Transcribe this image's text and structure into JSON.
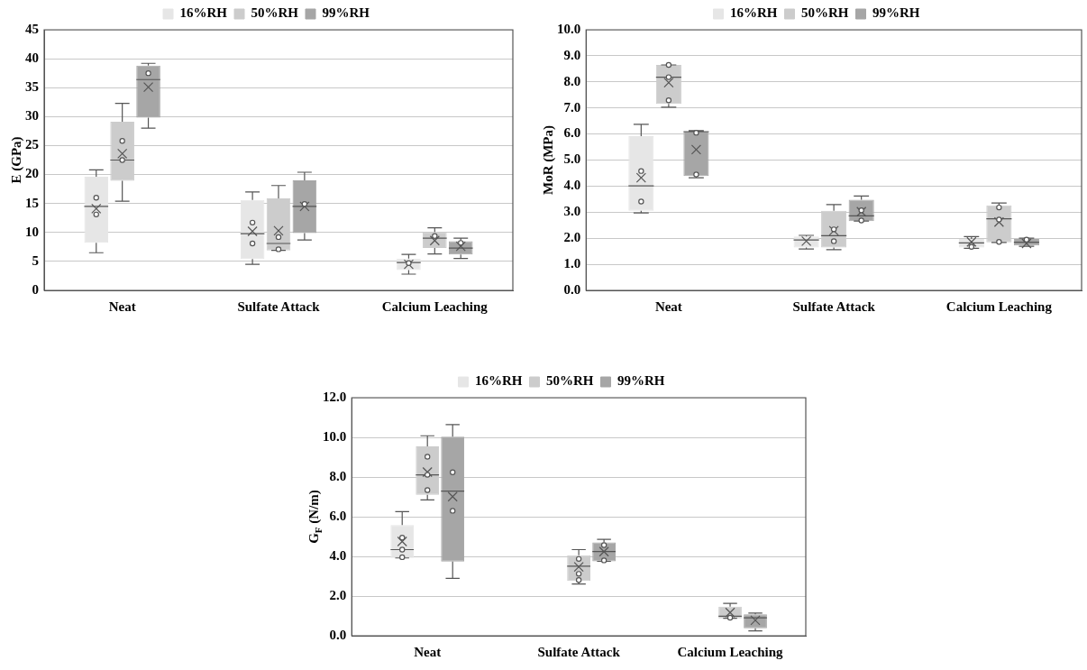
{
  "chart_data": [
    {
      "type": "box",
      "ylabel": "E (GPa)",
      "categories": [
        "Neat",
        "Sulfate Attack",
        "Calcium Leaching"
      ],
      "ylim": [
        0,
        45
      ],
      "yticks": [
        0,
        5,
        10,
        15,
        20,
        25,
        30,
        35,
        40,
        45
      ],
      "grid": "y",
      "legend": "top",
      "series": [
        {
          "name": "16%RH",
          "color": "#e6e6e6",
          "boxes": [
            {
              "low": 6.5,
              "q1": 8.2,
              "median": 14.5,
              "q3": 19.6,
              "high": 20.8,
              "mean": 14.1,
              "outliers": [
                16.0,
                13.1
              ]
            },
            {
              "low": 4.5,
              "q1": 5.4,
              "median": 9.8,
              "q3": 15.6,
              "high": 17.0,
              "mean": 10.2,
              "outliers": [
                11.7,
                8.1
              ]
            },
            {
              "low": 2.8,
              "q1": 3.5,
              "median": 4.8,
              "q3": 5.5,
              "high": 6.2,
              "mean": 4.5,
              "outliers": [
                4.7
              ]
            }
          ]
        },
        {
          "name": "50%RH",
          "color": "#cccccc",
          "boxes": [
            {
              "low": 15.4,
              "q1": 18.9,
              "median": 22.5,
              "q3": 29.1,
              "high": 32.3,
              "mean": 23.6,
              "outliers": [
                25.8,
                22.5
              ]
            },
            {
              "low": 6.9,
              "q1": 6.9,
              "median": 8.1,
              "q3": 15.9,
              "high": 18.1,
              "mean": 10.3,
              "outliers": [
                9.2,
                7.1
              ]
            },
            {
              "low": 6.3,
              "q1": 7.3,
              "median": 9.0,
              "q3": 10.1,
              "high": 10.8,
              "mean": 8.6,
              "outliers": [
                9.4
              ]
            }
          ]
        },
        {
          "name": "99%RH",
          "color": "#a6a6a6",
          "boxes": [
            {
              "low": 28.0,
              "q1": 29.8,
              "median": 36.4,
              "q3": 38.8,
              "high": 39.2,
              "mean": 35.1,
              "outliers": [
                37.5
              ]
            },
            {
              "low": 8.7,
              "q1": 9.9,
              "median": 14.5,
              "q3": 19.0,
              "high": 20.4,
              "mean": 14.5,
              "outliers": [
                14.9
              ]
            },
            {
              "low": 5.5,
              "q1": 6.2,
              "median": 7.3,
              "q3": 8.5,
              "high": 9.0,
              "mean": 7.6,
              "outliers": [
                8.2
              ]
            }
          ]
        }
      ]
    },
    {
      "type": "box",
      "ylabel": "MoR (MPa)",
      "categories": [
        "Neat",
        "Sulfate Attack",
        "Calcium Leaching"
      ],
      "ylim": [
        0,
        10
      ],
      "yticks": [
        {
          "value": 0,
          "label": "0.0"
        },
        {
          "value": 1,
          "label": "1.0"
        },
        {
          "value": 2,
          "label": "2.0"
        },
        {
          "value": 3,
          "label": "3.0"
        },
        {
          "value": 4,
          "label": "4.0"
        },
        {
          "value": 5,
          "label": "5.0"
        },
        {
          "value": 6,
          "label": "6.0"
        },
        {
          "value": 7,
          "label": "7.0"
        },
        {
          "value": 8,
          "label": "8.0"
        },
        {
          "value": 9,
          "label": "9.0"
        },
        {
          "value": 10,
          "label": "10.0"
        }
      ],
      "grid": "y",
      "legend": "top",
      "series": [
        {
          "name": "16%RH",
          "color": "#e6e6e6",
          "boxes": [
            {
              "low": 2.97,
              "q1": 3.05,
              "median": 4.01,
              "q3": 5.92,
              "high": 6.37,
              "mean": 4.32,
              "outliers": [
                4.58,
                3.41
              ]
            },
            {
              "low": 1.59,
              "q1": 1.64,
              "median": 1.93,
              "q3": 2.07,
              "high": 2.11,
              "mean": 1.89
            },
            {
              "low": 1.61,
              "q1": 1.64,
              "median": 1.82,
              "q3": 1.97,
              "high": 2.06,
              "mean": 1.86,
              "outliers": [
                1.67
              ]
            }
          ]
        },
        {
          "name": "50%RH",
          "color": "#cccccc",
          "boxes": [
            {
              "low": 7.03,
              "q1": 7.15,
              "median": 8.18,
              "q3": 8.65,
              "high": 8.65,
              "mean": 7.97,
              "outliers": [
                8.65,
                8.18,
                7.29
              ]
            },
            {
              "low": 1.56,
              "q1": 1.64,
              "median": 2.1,
              "q3": 3.05,
              "high": 3.29,
              "mean": 2.29,
              "outliers": [
                2.34,
                1.89
              ]
            },
            {
              "low": 1.84,
              "q1": 1.84,
              "median": 2.75,
              "q3": 3.26,
              "high": 3.35,
              "mean": 2.62,
              "outliers": [
                3.18,
                2.72,
                1.86
              ]
            }
          ]
        },
        {
          "name": "99%RH",
          "color": "#a6a6a6",
          "boxes": [
            {
              "low": 4.32,
              "q1": 4.39,
              "median": 6.09,
              "q3": 6.09,
              "high": 6.13,
              "mean": 5.4,
              "outliers": [
                6.05,
                4.45
              ]
            },
            {
              "low": 2.66,
              "q1": 2.66,
              "median": 2.86,
              "q3": 3.48,
              "high": 3.62,
              "mean": 3.02,
              "outliers": [
                3.07,
                2.68
              ]
            },
            {
              "low": 1.69,
              "q1": 1.72,
              "median": 1.85,
              "q3": 1.97,
              "high": 2.0,
              "mean": 1.8,
              "outliers": [
                1.95
              ]
            }
          ]
        }
      ]
    },
    {
      "type": "box",
      "ylabel": "G$_{F}$ (N/m)",
      "categories": [
        "Neat",
        "Sulfate Attack",
        "Calcium Leaching"
      ],
      "ylim": [
        0,
        12
      ],
      "yticks": [
        {
          "value": 0,
          "label": "0.0"
        },
        {
          "value": 2,
          "label": "2.0"
        },
        {
          "value": 4,
          "label": "4.0"
        },
        {
          "value": 6,
          "label": "6.0"
        },
        {
          "value": 8,
          "label": "8.0"
        },
        {
          "value": 10,
          "label": "10.0"
        },
        {
          "value": 12,
          "label": "12.0"
        }
      ],
      "grid": "y",
      "legend": "top",
      "series": [
        {
          "name": "16%RH",
          "color": "#e6e6e6",
          "boxes": [
            {
              "low": 3.92,
              "q1": 3.92,
              "median": 4.34,
              "q3": 5.58,
              "high": 6.26,
              "mean": 4.75,
              "outliers": [
                4.94,
                4.34,
                3.96
              ]
            },
            null,
            null
          ]
        },
        {
          "name": "50%RH",
          "color": "#cccccc",
          "boxes": [
            {
              "low": 6.85,
              "q1": 7.1,
              "median": 8.11,
              "q3": 9.54,
              "high": 10.08,
              "mean": 8.25,
              "outliers": [
                9.02,
                8.11,
                7.34
              ]
            },
            {
              "low": 2.61,
              "q1": 2.76,
              "median": 3.51,
              "q3": 4.06,
              "high": 4.34,
              "mean": 3.47,
              "outliers": [
                3.87,
                3.12,
                2.81
              ]
            },
            {
              "low": 0.88,
              "q1": 0.88,
              "median": 0.98,
              "q3": 1.47,
              "high": 1.63,
              "mean": 1.17,
              "outliers": [
                0.91
              ]
            }
          ]
        },
        {
          "name": "99%RH",
          "color": "#a6a6a6",
          "boxes": [
            {
              "low": 2.89,
              "q1": 3.74,
              "median": 7.29,
              "q3": 10.03,
              "high": 10.64,
              "mean": 7.01,
              "outliers": [
                8.24,
                6.3
              ]
            },
            {
              "low": 3.75,
              "q1": 3.75,
              "median": 4.24,
              "q3": 4.7,
              "high": 4.86,
              "mean": 4.24,
              "outliers": [
                4.57,
                3.8
              ]
            },
            {
              "low": 0.24,
              "q1": 0.38,
              "median": 0.9,
              "q3": 1.08,
              "high": 1.14,
              "mean": 0.78
            }
          ]
        }
      ]
    }
  ]
}
